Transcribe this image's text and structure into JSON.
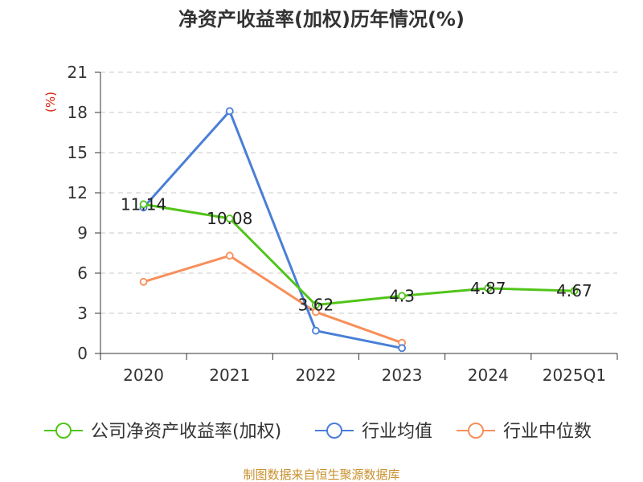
{
  "chart_data": {
    "type": "line",
    "title": "净资产收益率(加权)历年情况(%)",
    "ylabel": "(%)",
    "xlabel": "",
    "categories": [
      "2020",
      "2021",
      "2022",
      "2023",
      "2024",
      "2025Q1"
    ],
    "ylim": [
      0,
      21
    ],
    "yticks": [
      0,
      3,
      6,
      9,
      12,
      15,
      18,
      21
    ],
    "grid": true,
    "legend_position": "bottom",
    "series": [
      {
        "name": "公司净资产收益率(加权)",
        "color": "#52c41a",
        "values": [
          11.14,
          10.08,
          3.62,
          4.3,
          4.87,
          4.67
        ],
        "labels": [
          "11.14",
          "10.08",
          "3.62",
          "4.3",
          "4.87",
          "4.67"
        ]
      },
      {
        "name": "行业均值",
        "color": "#4a7fd6",
        "values": [
          10.9,
          18.1,
          1.7,
          0.4,
          null,
          null
        ]
      },
      {
        "name": "行业中位数",
        "color": "#f78f5a",
        "values": [
          5.35,
          7.3,
          3.1,
          0.8,
          null,
          null
        ]
      }
    ],
    "source": "制图数据来自恒生聚源数据库"
  },
  "colors": {
    "axis": "#333333",
    "grid": "#c8c8c8",
    "title": "#333333",
    "ylabel": "#d81e06",
    "source": "#c8902e"
  }
}
